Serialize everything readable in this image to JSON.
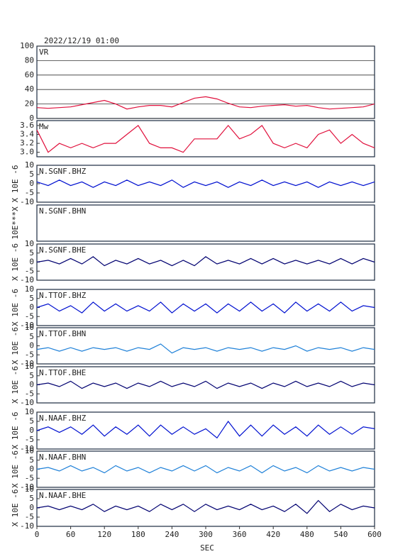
{
  "chart_data": [
    {
      "type": "line",
      "title": "2022/12/19 01:00",
      "label": "VR",
      "color": "#e0103c",
      "grid": true,
      "xlim": [
        0,
        600
      ],
      "ylim": [
        0,
        100
      ],
      "yticks": [
        0,
        20,
        40,
        60,
        80,
        100
      ],
      "x": [
        0,
        20,
        40,
        60,
        80,
        100,
        120,
        140,
        160,
        180,
        200,
        220,
        240,
        260,
        280,
        300,
        320,
        340,
        360,
        380,
        400,
        420,
        440,
        460,
        480,
        500,
        520,
        540,
        560,
        580,
        600
      ],
      "values": [
        15,
        14,
        15,
        16,
        19,
        22,
        25,
        20,
        13,
        16,
        18,
        18,
        16,
        22,
        28,
        30,
        27,
        21,
        16,
        15,
        17,
        18,
        19,
        17,
        18,
        15,
        13,
        14,
        15,
        16,
        20
      ]
    },
    {
      "type": "line",
      "label": "Mw",
      "color": "#e0103c",
      "xlim": [
        0,
        600
      ],
      "ylim": [
        2.9,
        3.71
      ],
      "yticks": [
        {
          "value": 3,
          "label": "3.0"
        },
        3.2,
        3.4,
        3.6
      ],
      "x": [
        0,
        20,
        40,
        60,
        80,
        100,
        120,
        140,
        160,
        180,
        200,
        220,
        240,
        260,
        280,
        300,
        320,
        340,
        360,
        380,
        400,
        420,
        440,
        460,
        480,
        500,
        520,
        540,
        560,
        580,
        600
      ],
      "values": [
        3.5,
        3.0,
        3.2,
        3.1,
        3.2,
        3.1,
        3.2,
        3.2,
        3.4,
        3.6,
        3.2,
        3.1,
        3.1,
        3.0,
        3.3,
        3.3,
        3.3,
        3.6,
        3.3,
        3.4,
        3.6,
        3.2,
        3.1,
        3.2,
        3.1,
        3.4,
        3.5,
        3.2,
        3.4,
        3.2,
        3.1
      ]
    },
    {
      "type": "line",
      "label": "N.SGNF.BHZ",
      "ylabel": "X 10E -6",
      "color": "#0010d0",
      "xlim": [
        0,
        600
      ],
      "ylim": [
        -10,
        10
      ],
      "yticks": [
        -10,
        -5,
        0,
        5,
        10
      ],
      "x": [
        0,
        20,
        40,
        60,
        80,
        100,
        120,
        140,
        160,
        180,
        200,
        220,
        240,
        260,
        280,
        300,
        320,
        340,
        360,
        380,
        400,
        420,
        440,
        460,
        480,
        500,
        520,
        540,
        560,
        580,
        600
      ],
      "values": [
        1,
        -1,
        2,
        -1,
        1,
        -2,
        1,
        -1,
        2,
        -1,
        1,
        -1,
        2,
        -2,
        1,
        -1,
        1,
        -2,
        1,
        -1,
        2,
        -1,
        1,
        -1,
        1,
        -2,
        1,
        -1,
        1,
        -1,
        1
      ]
    },
    {
      "type": "line",
      "label": "N.SGNF.BHN",
      "ylabel": "10E***X",
      "xlim": [
        0,
        600
      ]
    },
    {
      "type": "line",
      "label": "N.SGNF.BHE",
      "ylabel": "X 10E -6",
      "color": "#000070",
      "xlim": [
        0,
        600
      ],
      "ylim": [
        -10,
        10
      ],
      "yticks": [
        -10,
        -5,
        0,
        5,
        10
      ],
      "x": [
        0,
        20,
        40,
        60,
        80,
        100,
        120,
        140,
        160,
        180,
        200,
        220,
        240,
        260,
        280,
        300,
        320,
        340,
        360,
        380,
        400,
        420,
        440,
        460,
        480,
        500,
        520,
        540,
        560,
        580,
        600
      ],
      "values": [
        0,
        1,
        -1,
        2,
        -1,
        3,
        -2,
        1,
        -1,
        2,
        -1,
        1,
        -2,
        1,
        -2,
        3,
        -1,
        1,
        -1,
        2,
        -1,
        2,
        -1,
        1,
        -1,
        1,
        -1,
        2,
        -1,
        2,
        0
      ]
    },
    {
      "type": "line",
      "label": "N.TTOF.BHZ",
      "ylabel": "X 10E -6",
      "color": "#0010d0",
      "xlim": [
        0,
        600
      ],
      "ylim": [
        -10,
        10
      ],
      "yticks": [
        -10,
        -5,
        0,
        5,
        10
      ],
      "x": [
        0,
        20,
        40,
        60,
        80,
        100,
        120,
        140,
        160,
        180,
        200,
        220,
        240,
        260,
        280,
        300,
        320,
        340,
        360,
        380,
        400,
        420,
        440,
        460,
        480,
        500,
        520,
        540,
        560,
        580,
        600
      ],
      "values": [
        0,
        2,
        -2,
        1,
        -3,
        3,
        -2,
        2,
        -2,
        1,
        -2,
        3,
        -3,
        2,
        -2,
        2,
        -3,
        2,
        -2,
        3,
        -2,
        2,
        -3,
        3,
        -2,
        2,
        -2,
        3,
        -2,
        1,
        0
      ]
    },
    {
      "type": "line",
      "label": "N.TTOF.BHN",
      "ylabel": "X 10E -6",
      "color": "#1e80d8",
      "xlim": [
        0,
        600
      ],
      "ylim": [
        -10,
        10
      ],
      "yticks": [
        -10,
        -5,
        0,
        5,
        10
      ],
      "x": [
        0,
        20,
        40,
        60,
        80,
        100,
        120,
        140,
        160,
        180,
        200,
        220,
        240,
        260,
        280,
        300,
        320,
        340,
        360,
        380,
        400,
        420,
        440,
        460,
        480,
        500,
        520,
        540,
        560,
        580,
        600
      ],
      "values": [
        -2,
        -1,
        -3,
        -1,
        -3,
        -1,
        -2,
        -1,
        -3,
        -1,
        -2,
        1,
        -4,
        -1,
        -2,
        -1,
        -3,
        -1,
        -2,
        -1,
        -3,
        -1,
        -2,
        0,
        -3,
        -1,
        -2,
        -1,
        -3,
        -1,
        -2
      ]
    },
    {
      "type": "line",
      "label": "N.TTOF.BHE",
      "ylabel": "X 10E -6",
      "color": "#000070",
      "xlim": [
        0,
        600
      ],
      "ylim": [
        -10,
        10
      ],
      "yticks": [
        -10,
        -5,
        0,
        5,
        10
      ],
      "x": [
        0,
        20,
        40,
        60,
        80,
        100,
        120,
        140,
        160,
        180,
        200,
        220,
        240,
        260,
        280,
        300,
        320,
        340,
        360,
        380,
        400,
        420,
        440,
        460,
        480,
        500,
        520,
        540,
        560,
        580,
        600
      ],
      "values": [
        0,
        1,
        -1,
        2,
        -2,
        1,
        -1,
        1,
        -2,
        1,
        -1,
        2,
        -1,
        1,
        -1,
        2,
        -2,
        1,
        -1,
        1,
        -2,
        1,
        -1,
        2,
        -1,
        1,
        -1,
        2,
        -1,
        1,
        0
      ]
    },
    {
      "type": "line",
      "label": "N.NAAF.BHZ",
      "ylabel": "X 10E -6",
      "color": "#0010d0",
      "xlim": [
        0,
        600
      ],
      "ylim": [
        -10,
        10
      ],
      "yticks": [
        -10,
        -5,
        0,
        5,
        10
      ],
      "x": [
        0,
        20,
        40,
        60,
        80,
        100,
        120,
        140,
        160,
        180,
        200,
        220,
        240,
        260,
        280,
        300,
        320,
        340,
        360,
        380,
        400,
        420,
        440,
        460,
        480,
        500,
        520,
        540,
        560,
        580,
        600
      ],
      "values": [
        0,
        2,
        -1,
        2,
        -2,
        3,
        -3,
        2,
        -2,
        3,
        -3,
        3,
        -2,
        2,
        -2,
        1,
        -4,
        5,
        -3,
        3,
        -3,
        3,
        -2,
        2,
        -3,
        3,
        -2,
        2,
        -2,
        2,
        1
      ]
    },
    {
      "type": "line",
      "label": "N.NAAF.BHN",
      "ylabel": "X 10E -6",
      "color": "#1e80d8",
      "xlim": [
        0,
        600
      ],
      "ylim": [
        -10,
        10
      ],
      "yticks": [
        -10,
        -5,
        0,
        5,
        10
      ],
      "x": [
        0,
        20,
        40,
        60,
        80,
        100,
        120,
        140,
        160,
        180,
        200,
        220,
        240,
        260,
        280,
        300,
        320,
        340,
        360,
        380,
        400,
        420,
        440,
        460,
        480,
        500,
        520,
        540,
        560,
        580,
        600
      ],
      "values": [
        0,
        1,
        -1,
        2,
        -1,
        1,
        -2,
        2,
        -1,
        1,
        -2,
        1,
        -1,
        2,
        -1,
        2,
        -2,
        1,
        -1,
        2,
        -2,
        2,
        -1,
        1,
        -2,
        2,
        -1,
        1,
        -1,
        1,
        0
      ]
    },
    {
      "type": "line",
      "label": "N.NAAF.BHE",
      "ylabel": "X 10E -6",
      "xlabel": "SEC",
      "color": "#000070",
      "xlim": [
        0,
        600
      ],
      "xticks": [
        0,
        60,
        120,
        180,
        240,
        300,
        360,
        420,
        480,
        540,
        600
      ],
      "ylim": [
        -10,
        10
      ],
      "yticks": [
        -10,
        -5,
        0,
        5,
        10
      ],
      "x": [
        0,
        20,
        40,
        60,
        80,
        100,
        120,
        140,
        160,
        180,
        200,
        220,
        240,
        260,
        280,
        300,
        320,
        340,
        360,
        380,
        400,
        420,
        440,
        460,
        480,
        500,
        520,
        540,
        560,
        580,
        600
      ],
      "values": [
        0,
        1,
        -1,
        1,
        -1,
        2,
        -2,
        1,
        -1,
        1,
        -2,
        2,
        -1,
        2,
        -2,
        2,
        -1,
        1,
        -1,
        2,
        -1,
        1,
        -2,
        2,
        -3,
        4,
        -2,
        2,
        -1,
        1,
        0
      ]
    }
  ]
}
